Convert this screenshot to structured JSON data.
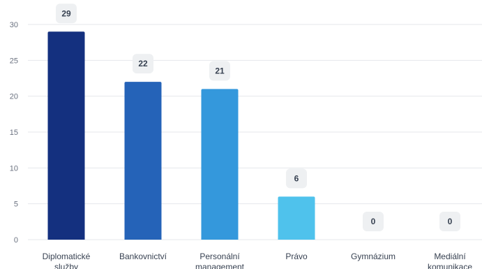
{
  "chart_data": {
    "type": "bar",
    "categories": [
      [
        "Diplomatické",
        "služby"
      ],
      [
        "Bankovnictví"
      ],
      [
        "Personální",
        "management"
      ],
      [
        "Právo"
      ],
      [
        "Gymnázium"
      ],
      [
        "Mediální",
        "komunikace"
      ]
    ],
    "values": [
      29,
      22,
      21,
      6,
      0,
      0
    ],
    "bar_colors": [
      "#14307f",
      "#2563b8",
      "#3498dc",
      "#4fc2ec",
      "#4fc2ec",
      "#4fc2ec"
    ],
    "ylim": [
      0,
      30
    ],
    "yticks": [
      0,
      5,
      10,
      15,
      20,
      25,
      30
    ],
    "grid": true,
    "data_labels": true
  }
}
